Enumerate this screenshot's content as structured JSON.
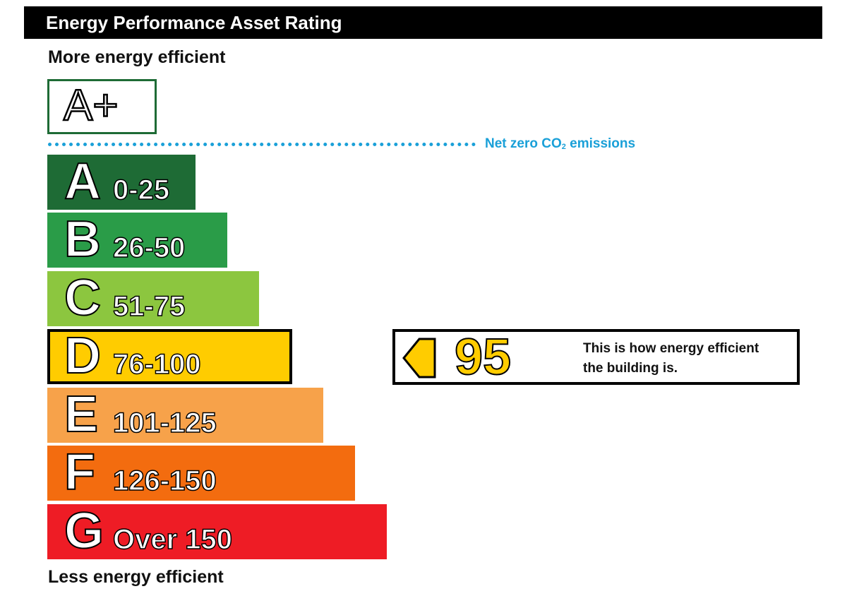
{
  "header": {
    "title": "Energy Performance Asset Rating"
  },
  "scale": {
    "more_efficient_label": "More energy efficient",
    "less_efficient_label": "Less energy efficient",
    "a_plus_label": "A+",
    "net_zero": {
      "prefix": "Net zero CO",
      "subscript": "2",
      "suffix": " emissions",
      "color": "#1aa0d8"
    },
    "bands": [
      {
        "letter": "A",
        "range": "0-25",
        "color": "#1e6b35",
        "current": false
      },
      {
        "letter": "B",
        "range": "26-50",
        "color": "#2a9c48",
        "current": false
      },
      {
        "letter": "C",
        "range": "51-75",
        "color": "#8cc63f",
        "current": false
      },
      {
        "letter": "D",
        "range": "76-100",
        "color": "#ffcc00",
        "current": true
      },
      {
        "letter": "E",
        "range": "101-125",
        "color": "#f7a24a",
        "current": false
      },
      {
        "letter": "F",
        "range": "126-150",
        "color": "#f36c0f",
        "current": false
      },
      {
        "letter": "G",
        "range": "Over 150",
        "color": "#ee1c25",
        "current": false
      }
    ]
  },
  "rating": {
    "value": "95",
    "caption_line1": "This is how energy efficient",
    "caption_line2": "the building is.",
    "color": "#ffcc00"
  }
}
